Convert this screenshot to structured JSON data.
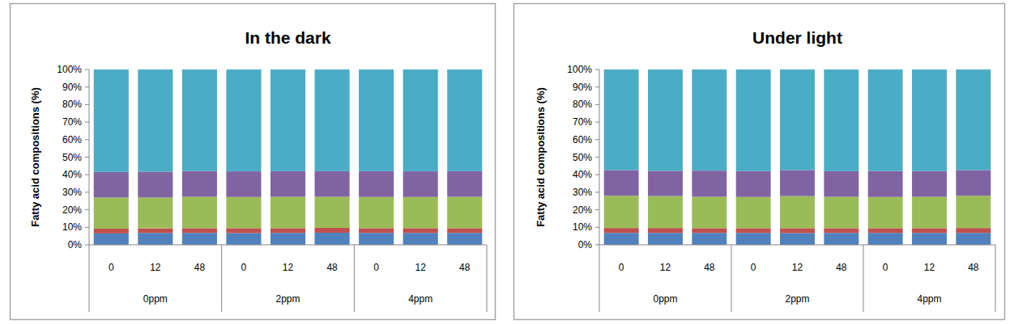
{
  "chart_data": [
    {
      "type": "bar",
      "stacked": true,
      "title": "In the dark",
      "y_label": "Fatty acid compositions (%)",
      "categories": [
        "0",
        "12",
        "48",
        "0",
        "12",
        "48",
        "0",
        "12",
        "48"
      ],
      "groups": [
        "0ppm",
        "2ppm",
        "4ppm"
      ],
      "grid": false,
      "ylim": [
        0,
        100
      ],
      "yticks": [
        {
          "value": 0,
          "label": "0%"
        },
        {
          "value": 10,
          "label": "10%"
        },
        {
          "value": 20,
          "label": "20%"
        },
        {
          "value": 30,
          "label": "30%"
        },
        {
          "value": 40,
          "label": "40%"
        },
        {
          "value": 50,
          "label": "50%"
        },
        {
          "value": 60,
          "label": "60%"
        },
        {
          "value": 70,
          "label": "70%"
        },
        {
          "value": 80,
          "label": "80%"
        },
        {
          "value": 90,
          "label": "90%"
        },
        {
          "value": 100,
          "label": "100%"
        }
      ],
      "series": [
        {
          "color": "#4F81BD",
          "values": [
            6.5,
            6.8,
            6.8,
            6.7,
            6.8,
            6.9,
            6.8,
            6.8,
            6.8
          ]
        },
        {
          "color": "#C0504D",
          "values": [
            2.7,
            2.6,
            2.7,
            2.8,
            2.7,
            2.8,
            2.7,
            2.7,
            2.7
          ]
        },
        {
          "color": "#9BBB59",
          "values": [
            17.8,
            17.6,
            17.9,
            17.8,
            17.9,
            17.7,
            17.8,
            17.8,
            17.9
          ]
        },
        {
          "color": "#8064A2",
          "values": [
            14.6,
            14.7,
            14.7,
            14.6,
            14.6,
            14.6,
            14.7,
            14.6,
            14.6
          ]
        },
        {
          "color": "#4BACC6",
          "values": [
            58.4,
            58.3,
            57.9,
            58.1,
            58.0,
            58.0,
            58.0,
            58.1,
            58.0
          ]
        }
      ]
    },
    {
      "type": "bar",
      "stacked": true,
      "title": "Under light",
      "y_label": "Fatty acid compositions (%)",
      "categories": [
        "0",
        "12",
        "48",
        "0",
        "12",
        "48",
        "0",
        "12",
        "48"
      ],
      "groups": [
        "0ppm",
        "2ppm",
        "4ppm"
      ],
      "grid": false,
      "ylim": [
        0,
        100
      ],
      "yticks": [
        {
          "value": 0,
          "label": "0%"
        },
        {
          "value": 10,
          "label": "10%"
        },
        {
          "value": 20,
          "label": "20%"
        },
        {
          "value": 30,
          "label": "30%"
        },
        {
          "value": 40,
          "label": "40%"
        },
        {
          "value": 50,
          "label": "50%"
        },
        {
          "value": 60,
          "label": "60%"
        },
        {
          "value": 70,
          "label": "70%"
        },
        {
          "value": 80,
          "label": "80%"
        },
        {
          "value": 90,
          "label": "90%"
        },
        {
          "value": 100,
          "label": "100%"
        }
      ],
      "series": [
        {
          "color": "#4F81BD",
          "values": [
            6.8,
            6.8,
            6.8,
            6.8,
            6.7,
            6.8,
            6.8,
            6.8,
            6.8
          ]
        },
        {
          "color": "#C0504D",
          "values": [
            2.8,
            2.8,
            2.7,
            2.7,
            2.8,
            2.7,
            2.7,
            2.7,
            2.8
          ]
        },
        {
          "color": "#9BBB59",
          "values": [
            18.4,
            18.2,
            17.9,
            17.8,
            18.3,
            17.9,
            17.8,
            17.9,
            18.4
          ]
        },
        {
          "color": "#8064A2",
          "values": [
            14.6,
            14.4,
            14.9,
            14.8,
            14.8,
            14.6,
            14.8,
            14.7,
            14.6
          ]
        },
        {
          "color": "#4BACC6",
          "values": [
            57.4,
            57.8,
            57.7,
            57.9,
            57.4,
            58.0,
            57.9,
            57.9,
            57.4
          ]
        }
      ]
    }
  ]
}
